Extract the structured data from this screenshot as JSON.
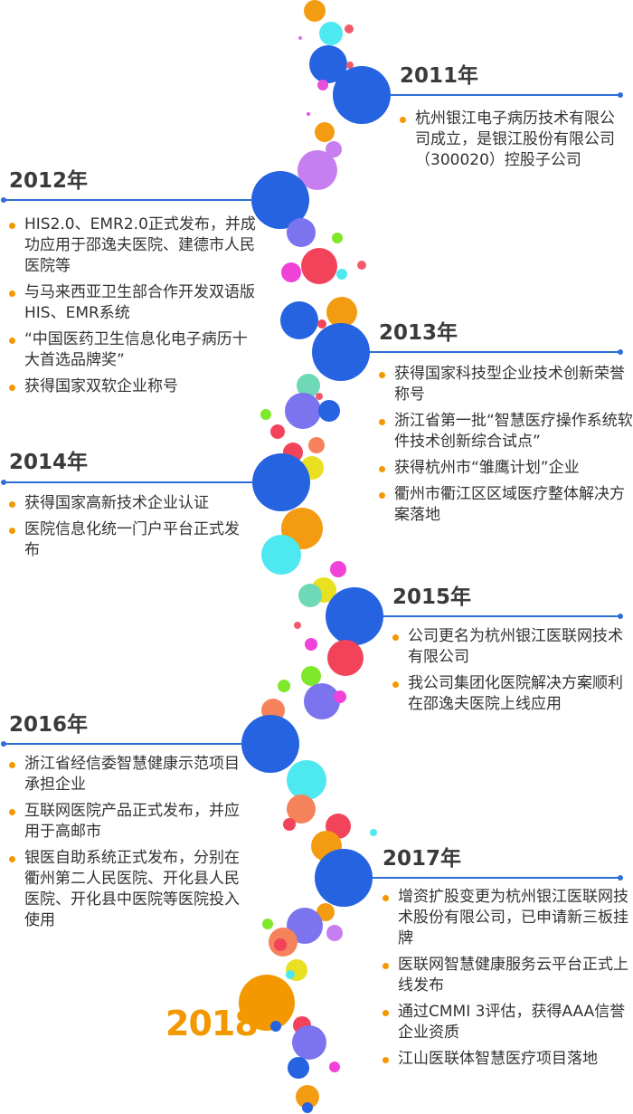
{
  "colors": {
    "line": "#2c6fd6",
    "bullet": "#f39800",
    "year_text": "#3a3a3a",
    "final_year": "#f39800"
  },
  "milestones": [
    {
      "year": "2011年",
      "items": [
        "杭州银江电子病历技术有限公司成立，是银江股份有限公司（300020）控股子公司"
      ]
    },
    {
      "year": "2012年",
      "items": [
        "HIS2.0、EMR2.0正式发布，并成功应用于邵逸夫医院、建德市人民医院等",
        "与马来西亚卫生部合作开发双语版HIS、EMR系统",
        "“中国医药卫生信息化电子病历十大首选品牌奖”",
        "获得国家双软企业称号"
      ]
    },
    {
      "year": "2013年",
      "items": [
        "获得国家科技型企业技术创新荣誉称号",
        "浙江省第一批“智慧医疗操作系统软件技术创新综合试点”",
        "获得杭州市“雏鹰计划”企业",
        "衢州市衢江区区域医疗整体解决方案落地"
      ]
    },
    {
      "year": "2014年",
      "items": [
        "获得国家高新技术企业认证",
        "医院信息化统一门户平台正式发布"
      ]
    },
    {
      "year": "2015年",
      "items": [
        "公司更名为杭州银江医联网技术有限公司",
        "我公司集团化医院解决方案顺利在邵逸夫医院上线应用"
      ]
    },
    {
      "year": "2016年",
      "items": [
        "浙江省经信委智慧健康示范项目承担企业",
        "互联网医院产品正式发布，并应用于高邮市",
        "银医自助系统正式发布，分别在衢州第二人民医院、开化县人民医院、开化县中医院等医院投入使用"
      ]
    },
    {
      "year": "2017年",
      "items": [
        "增资扩股变更为杭州银江医联网技术股份有限公司，已申请新三板挂牌",
        "医联网智慧健康服务云平台正式上线发布",
        "通过CMMI 3评估，获得AAA信誉企业资质",
        "江山医联体智慧医疗项目落地"
      ]
    }
  ],
  "final_year": "2018"
}
